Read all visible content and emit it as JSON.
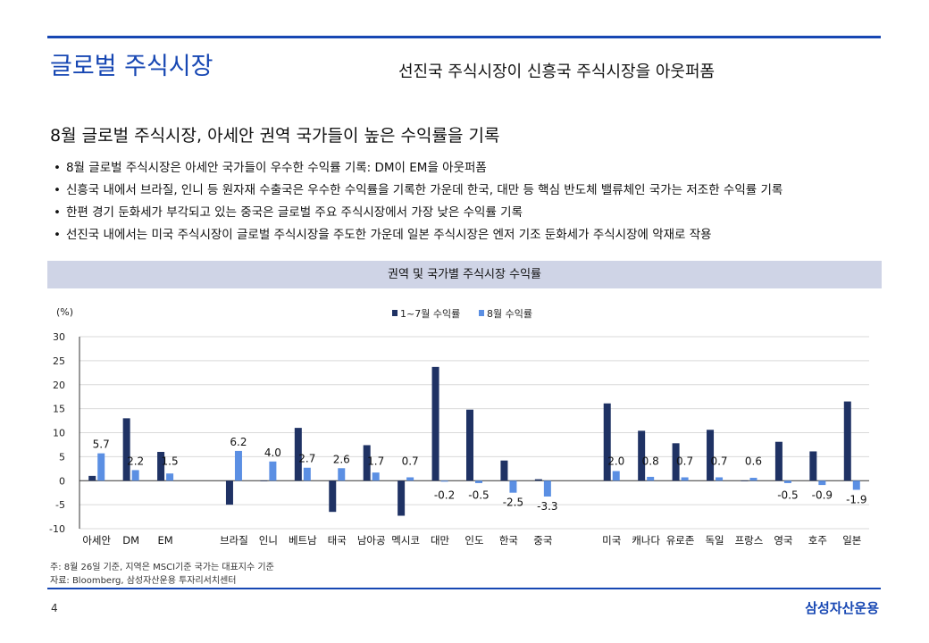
{
  "header": {
    "title": "글로벌 주식시장",
    "subtitle": "선진국 주식시장이 신흥국 주식시장을 아웃퍼폼"
  },
  "section": {
    "heading": "8월 글로벌 주식시장, 아세안 권역 국가들이 높은 수익률을 기록",
    "bullets": [
      "8월 글로벌 주식시장은 아세안 국가들이 우수한 수익률 기록: DM이 EM을 아웃퍼폼",
      "신흥국 내에서 브라질, 인니 등 원자재 수출국은 우수한 수익률을 기록한 가운데 한국, 대만 등 핵심 반도체 밸류체인 국가는 저조한 수익률 기록",
      "한편 경기 둔화세가 부각되고 있는 중국은 글로벌 주요 주식시장에서 가장 낮은 수익률 기록",
      "선진국 내에서는 미국 주식시장이 글로벌 주식시장을 주도한 가운데 일본 주식시장은 엔저 기조 둔화세가 주식시장에 악재로 작용"
    ]
  },
  "chart_data": {
    "type": "bar",
    "title": "권역 및 국가별 주식시장 수익률",
    "ylabel": "(%)",
    "ylim": [
      -10,
      30
    ],
    "yticks": [
      30,
      25,
      20,
      15,
      10,
      5,
      0,
      -5,
      -10
    ],
    "grid": true,
    "legend_position": "top-center",
    "categories": [
      "아세안",
      "DM",
      "EM",
      "",
      "브라질",
      "인니",
      "베트남",
      "태국",
      "남아공",
      "멕시코",
      "대만",
      "인도",
      "한국",
      "중국",
      "",
      "미국",
      "캐나다",
      "유로존",
      "독일",
      "프랑스",
      "영국",
      "호주",
      "일본"
    ],
    "series": [
      {
        "name": "1~7월 수익률",
        "color": "#1f3264",
        "values": [
          1.0,
          13.0,
          6.0,
          null,
          -5.0,
          0.0,
          11.0,
          -6.5,
          7.4,
          -7.3,
          23.7,
          14.8,
          4.2,
          0.3,
          null,
          16.1,
          10.4,
          7.8,
          10.6,
          0.0,
          8.1,
          6.1,
          16.5
        ]
      },
      {
        "name": "8월 수익률",
        "color": "#5b8fe3",
        "values": [
          5.7,
          2.2,
          1.5,
          null,
          6.2,
          4.0,
          2.7,
          2.6,
          1.7,
          0.7,
          -0.2,
          -0.5,
          -2.5,
          -3.3,
          null,
          2.0,
          0.8,
          0.7,
          0.7,
          0.6,
          -0.5,
          -0.9,
          -1.9
        ]
      }
    ],
    "data_labels": [
      "5.7",
      "2.2",
      "1.5",
      "",
      "6.2",
      "4.0",
      "2.7",
      "2.6",
      "1.7",
      "0.7",
      "-0.2",
      "-0.5",
      "-2.5",
      "-3.3",
      "",
      "2.0",
      "0.8",
      "0.7",
      "0.7",
      "0.6",
      "-0.5",
      "-0.9",
      "-1.9"
    ]
  },
  "footnotes": {
    "note": "주: 8월 26일 기준, 지역은 MSCI기준 국가는 대표지수 기준",
    "source": "자료: Bloomberg, 삼성자산운용 투자리서치센터"
  },
  "footer": {
    "page": "4",
    "brand": "삼성자산운용"
  }
}
